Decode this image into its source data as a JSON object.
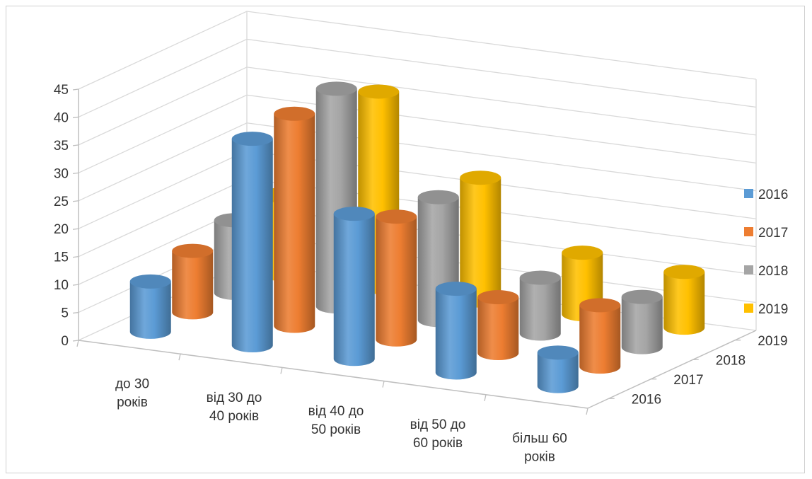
{
  "chart_data": {
    "type": "bar",
    "subtype": "3d-cylinder",
    "title": "",
    "xlabel": "",
    "ylabel": "",
    "ylim": [
      0,
      45
    ],
    "yticks": [
      "0",
      "5",
      "10",
      "15",
      "20",
      "25",
      "30",
      "35",
      "40",
      "45"
    ],
    "grid": true,
    "legend_position": "right",
    "categories": [
      [
        "до 30",
        "років"
      ],
      [
        "від 30 до",
        "40 років"
      ],
      [
        "від 40 до",
        "50 років"
      ],
      [
        "від 50 до",
        "60 років"
      ],
      [
        "більш 60",
        "років"
      ]
    ],
    "depth_labels": [
      "2016",
      "2017",
      "2018",
      "2019"
    ],
    "series": [
      {
        "name": "2016",
        "color": "#5B9BD5",
        "values": [
          9,
          37,
          26,
          15,
          6
        ]
      },
      {
        "name": "2017",
        "color": "#ED7D31",
        "values": [
          11,
          38,
          22,
          10,
          11
        ]
      },
      {
        "name": "2018",
        "color": "#A5A5A5",
        "values": [
          13,
          39,
          22,
          10,
          9
        ]
      },
      {
        "name": "2019",
        "color": "#FFC000",
        "values": [
          14,
          35,
          22,
          11,
          10
        ]
      }
    ]
  }
}
